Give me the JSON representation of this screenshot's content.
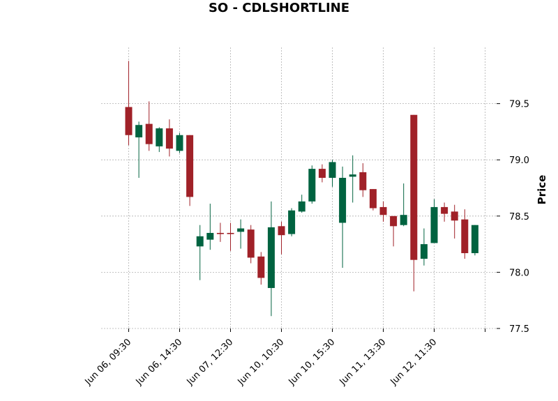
{
  "chart_data": {
    "type": "candlestick",
    "title": "SO - CDLSHORTLINE",
    "ylabel": "Price",
    "ylim": [
      77.5,
      80.0
    ],
    "yticks": [
      77.5,
      78.0,
      78.5,
      79.0,
      79.5
    ],
    "ytick_labels": [
      "77.5",
      "78.0",
      "78.5",
      "79.0",
      "79.5"
    ],
    "xtick_index": [
      0,
      5,
      10,
      15,
      20,
      25,
      30,
      35
    ],
    "xtick_labels": [
      "Jun 06, 09:30",
      "Jun 06, 14:30",
      "Jun 07, 12:30",
      "Jun 10, 10:30",
      "Jun 10, 15:30",
      "Jun 11, 13:30",
      "Jun 12, 11:30",
      ""
    ],
    "grid": true,
    "colors": {
      "up": "#006340",
      "down": "#a02128",
      "grid": "#b0b0b0"
    },
    "candles": [
      {
        "o": 79.47,
        "h": 79.88,
        "l": 79.13,
        "c": 79.22
      },
      {
        "o": 79.2,
        "h": 79.34,
        "l": 78.84,
        "c": 79.31
      },
      {
        "o": 79.32,
        "h": 79.52,
        "l": 79.08,
        "c": 79.14
      },
      {
        "o": 79.12,
        "h": 79.29,
        "l": 79.07,
        "c": 79.28
      },
      {
        "o": 79.28,
        "h": 79.36,
        "l": 79.03,
        "c": 79.1
      },
      {
        "o": 79.08,
        "h": 79.24,
        "l": 79.06,
        "c": 79.22
      },
      {
        "o": 79.22,
        "h": 79.22,
        "l": 78.59,
        "c": 78.67
      },
      {
        "o": 78.23,
        "h": 78.42,
        "l": 77.93,
        "c": 78.32
      },
      {
        "o": 78.29,
        "h": 78.61,
        "l": 78.2,
        "c": 78.35
      },
      {
        "o": 78.35,
        "h": 78.44,
        "l": 78.27,
        "c": 78.34
      },
      {
        "o": 78.35,
        "h": 78.44,
        "l": 78.19,
        "c": 78.34
      },
      {
        "o": 78.36,
        "h": 78.47,
        "l": 78.21,
        "c": 78.39
      },
      {
        "o": 78.38,
        "h": 78.42,
        "l": 78.08,
        "c": 78.13
      },
      {
        "o": 78.14,
        "h": 78.18,
        "l": 77.89,
        "c": 77.95
      },
      {
        "o": 77.86,
        "h": 78.63,
        "l": 77.61,
        "c": 78.4
      },
      {
        "o": 78.41,
        "h": 78.45,
        "l": 78.16,
        "c": 78.33
      },
      {
        "o": 78.34,
        "h": 78.57,
        "l": 78.32,
        "c": 78.55
      },
      {
        "o": 78.54,
        "h": 78.69,
        "l": 78.53,
        "c": 78.63
      },
      {
        "o": 78.63,
        "h": 78.95,
        "l": 78.61,
        "c": 78.92
      },
      {
        "o": 78.92,
        "h": 78.96,
        "l": 78.8,
        "c": 78.84
      },
      {
        "o": 78.84,
        "h": 79.0,
        "l": 78.76,
        "c": 78.98
      },
      {
        "o": 78.44,
        "h": 78.94,
        "l": 78.04,
        "c": 78.84
      },
      {
        "o": 78.85,
        "h": 79.04,
        "l": 78.62,
        "c": 78.87
      },
      {
        "o": 78.89,
        "h": 78.97,
        "l": 78.67,
        "c": 78.73
      },
      {
        "o": 78.74,
        "h": 78.74,
        "l": 78.55,
        "c": 78.57
      },
      {
        "o": 78.58,
        "h": 78.63,
        "l": 78.45,
        "c": 78.51
      },
      {
        "o": 78.5,
        "h": 78.5,
        "l": 78.23,
        "c": 78.41
      },
      {
        "o": 78.42,
        "h": 78.79,
        "l": 78.41,
        "c": 78.51
      },
      {
        "o": 79.4,
        "h": 79.4,
        "l": 77.83,
        "c": 78.11
      },
      {
        "o": 78.12,
        "h": 78.39,
        "l": 78.06,
        "c": 78.25
      },
      {
        "o": 78.26,
        "h": 78.65,
        "l": 78.26,
        "c": 78.58
      },
      {
        "o": 78.58,
        "h": 78.62,
        "l": 78.45,
        "c": 78.52
      },
      {
        "o": 78.54,
        "h": 78.6,
        "l": 78.3,
        "c": 78.46
      },
      {
        "o": 78.47,
        "h": 78.56,
        "l": 78.12,
        "c": 78.17
      },
      {
        "o": 78.17,
        "h": 78.42,
        "l": 78.15,
        "c": 78.42
      }
    ]
  }
}
